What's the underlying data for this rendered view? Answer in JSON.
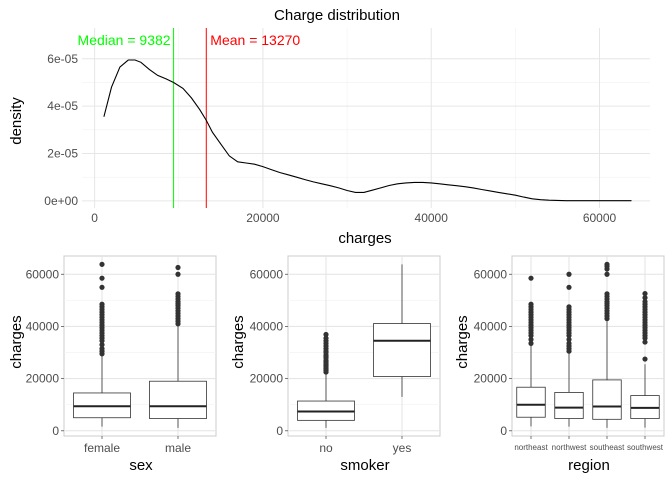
{
  "chart_data": [
    {
      "type": "line",
      "title": "Charge distribution",
      "xlabel": "charges",
      "ylabel": "density",
      "xlim": [
        -1500,
        66000
      ],
      "ylim": [
        -3e-06,
        7.3e-05
      ],
      "xticks": [
        0,
        20000,
        40000,
        60000
      ],
      "xtick_labels": [
        "0",
        "20000",
        "40000",
        "60000"
      ],
      "yticks": [
        0,
        2e-05,
        4e-05,
        6e-05
      ],
      "ytick_labels": [
        "0e+00",
        "2e-05",
        "4e-05",
        "6e-05"
      ],
      "grid": true,
      "series": [
        {
          "color": "#000000",
          "x": [
            1100,
            2000,
            3000,
            4000,
            4800,
            5500,
            6500,
            7500,
            8500,
            9382,
            10500,
            11500,
            12500,
            13270,
            14000,
            15000,
            16000,
            17000,
            18000,
            19000,
            20000,
            21000,
            22000,
            23000,
            24000,
            25000,
            26000,
            27000,
            28000,
            29000,
            30000,
            31000,
            32000,
            33000,
            34000,
            35000,
            36000,
            37000,
            38000,
            39000,
            40000,
            41000,
            42000,
            43000,
            44000,
            45000,
            46000,
            47000,
            48000,
            49000,
            50000,
            51000,
            52000,
            53000,
            54000,
            55000,
            56000,
            57000,
            58000,
            59000,
            60000,
            61000,
            62000,
            63000,
            63800
          ],
          "y": [
            3.55e-05,
            4.8e-05,
            5.65e-05,
            5.95e-05,
            5.95e-05,
            5.85e-05,
            5.55e-05,
            5.3e-05,
            5.15e-05,
            5e-05,
            4.75e-05,
            4.35e-05,
            3.85e-05,
            3.4e-05,
            2.9e-05,
            2.4e-05,
            1.9e-05,
            1.65e-05,
            1.6e-05,
            1.55e-05,
            1.45e-05,
            1.32e-05,
            1.2e-05,
            1.1e-05,
            1e-05,
            9e-06,
            8e-06,
            7.2e-06,
            6.4e-06,
            5.5e-06,
            4.4e-06,
            3.6e-06,
            3.6e-06,
            4.5e-06,
            5.5e-06,
            6.5e-06,
            7.2e-06,
            7.6e-06,
            7.8e-06,
            7.8e-06,
            7.6e-06,
            7.2e-06,
            6.8e-06,
            6.4e-06,
            6e-06,
            5.5e-06,
            4.8e-06,
            4.2e-06,
            3.6e-06,
            3e-06,
            2.4e-06,
            1.6e-06,
            9e-07,
            5e-07,
            3e-07,
            2e-07,
            1e-07,
            1e-07,
            1e-07,
            1e-07,
            1e-07,
            1e-07,
            1e-07,
            1e-07,
            1e-07
          ]
        }
      ],
      "vlines": [
        {
          "x": 9382,
          "label": "Median = 9382",
          "color": "#00ff00"
        },
        {
          "x": 13270,
          "label": "Mean = 13270",
          "color": "#ff0000"
        }
      ]
    },
    {
      "type": "boxplot",
      "xlabel": "sex",
      "ylabel": "charges",
      "categories": [
        "female",
        "male"
      ],
      "ylim": [
        -2000,
        67000
      ],
      "yticks": [
        0,
        20000,
        40000,
        60000
      ],
      "ytick_labels": [
        "0",
        "20000",
        "40000",
        "60000"
      ],
      "grid": true,
      "boxes": [
        {
          "min": 1600,
          "q1": 5000,
          "median": 9400,
          "q3": 14500,
          "whisker_high": 28800,
          "max": 63800,
          "outliers": [
            29500,
            30500,
            31500,
            33000,
            34500,
            35500,
            36500,
            37500,
            38500,
            39500,
            40500,
            41500,
            42500,
            43500,
            44500,
            45500,
            46500,
            47500,
            48500,
            55000,
            58500,
            63800
          ]
        },
        {
          "min": 1100,
          "q1": 4700,
          "median": 9400,
          "q3": 19000,
          "whisker_high": 40500,
          "max": 62600,
          "outliers": [
            41000,
            42000,
            43000,
            44000,
            45000,
            46000,
            47000,
            48000,
            48700,
            49500,
            50500,
            51500,
            52500,
            60000,
            62600
          ]
        }
      ]
    },
    {
      "type": "boxplot",
      "xlabel": "smoker",
      "ylabel": "charges",
      "categories": [
        "no",
        "yes"
      ],
      "ylim": [
        -2000,
        67000
      ],
      "yticks": [
        0,
        20000,
        40000,
        60000
      ],
      "ytick_labels": [
        "0",
        "20000",
        "40000",
        "60000"
      ],
      "grid": true,
      "boxes": [
        {
          "min": 1100,
          "q1": 4000,
          "median": 7400,
          "q3": 11400,
          "whisker_high": 22000,
          "max": 36900,
          "outliers": [
            22500,
            23000,
            23500,
            24000,
            24500,
            25000,
            25500,
            26000,
            26500,
            27000,
            28000,
            28500,
            29000,
            30000,
            30500,
            31500,
            32500,
            33500,
            34500,
            35500,
            36900
          ]
        },
        {
          "min": 13000,
          "q1": 20800,
          "median": 34500,
          "q3": 41100,
          "whisker_high": 63800,
          "max": 63800,
          "outliers": []
        }
      ]
    },
    {
      "type": "boxplot",
      "xlabel": "region",
      "ylabel": "charges",
      "categories": [
        "northeast",
        "northwest",
        "southeast",
        "southwest"
      ],
      "ylim": [
        -2000,
        67000
      ],
      "yticks": [
        0,
        20000,
        40000,
        60000
      ],
      "ytick_labels": [
        "0",
        "20000",
        "40000",
        "60000"
      ],
      "grid": true,
      "boxes": [
        {
          "min": 1700,
          "q1": 5200,
          "median": 10000,
          "q3": 16700,
          "whisker_high": 32500,
          "max": 58500,
          "outliers": [
            33500,
            35000,
            36500,
            37500,
            38500,
            39500,
            40500,
            41500,
            42500,
            43500,
            44500,
            45500,
            46500,
            47500,
            48500,
            58500
          ]
        },
        {
          "min": 1600,
          "q1": 4700,
          "median": 8900,
          "q3": 14700,
          "whisker_high": 29500,
          "max": 60000,
          "outliers": [
            30500,
            31500,
            32500,
            33500,
            35000,
            36500,
            37500,
            38500,
            39500,
            40500,
            41500,
            42500,
            43500,
            44500,
            45500,
            46500,
            47500,
            55000,
            60000
          ]
        },
        {
          "min": 1100,
          "q1": 4400,
          "median": 9300,
          "q3": 19500,
          "whisker_high": 42000,
          "max": 63800,
          "outliers": [
            43000,
            44000,
            45000,
            46000,
            47000,
            48000,
            48800,
            49500,
            50500,
            51500,
            52500,
            60000,
            62000,
            63000,
            63800
          ]
        },
        {
          "min": 1200,
          "q1": 4700,
          "median": 8800,
          "q3": 13500,
          "whisker_high": 25500,
          "max": 52600,
          "outliers": [
            27500,
            34000,
            35500,
            36500,
            37500,
            38500,
            39500,
            40500,
            41500,
            42500,
            43500,
            44500,
            45500,
            46500,
            47500,
            48500,
            49500,
            51000,
            52600
          ]
        }
      ]
    }
  ]
}
